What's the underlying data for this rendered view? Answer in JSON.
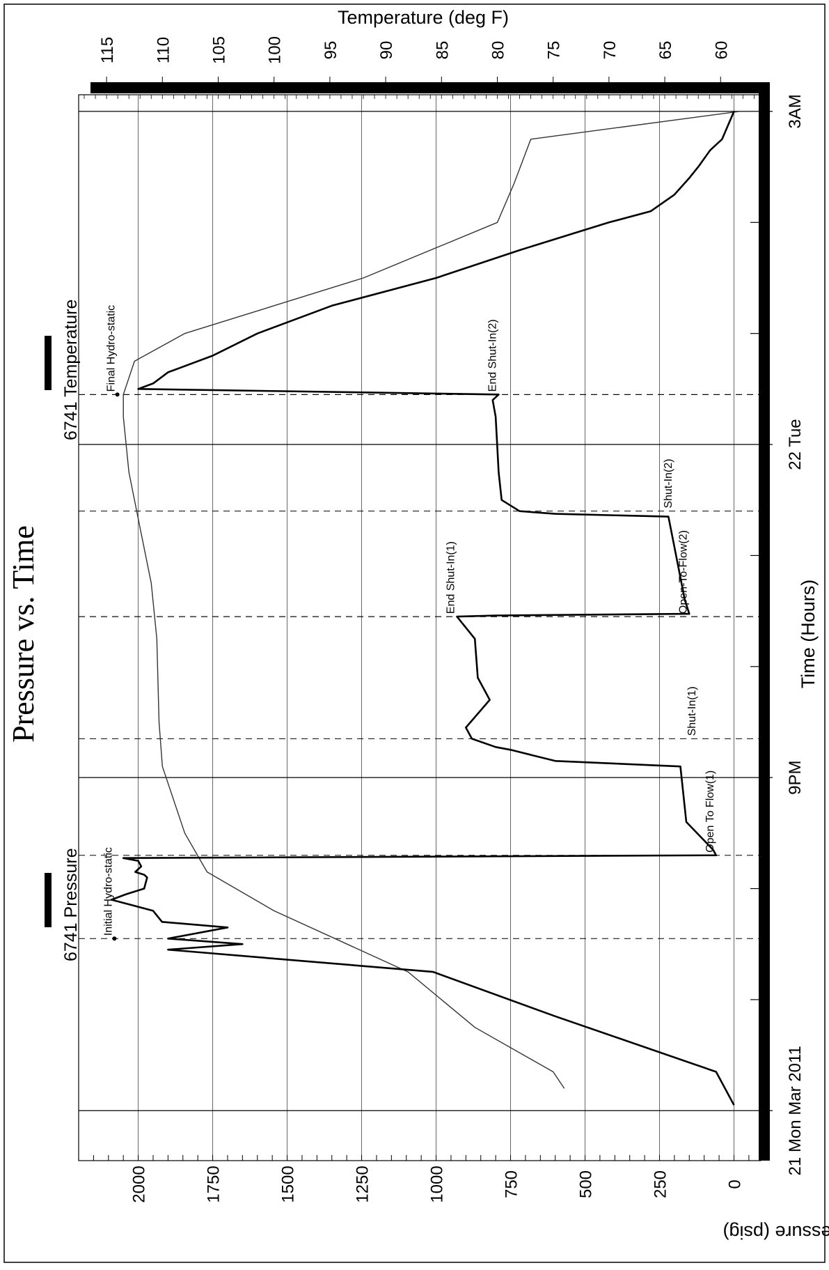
{
  "chart_data": {
    "type": "line",
    "orientation": "rotated-90-ccw",
    "title": "Pressure vs. Time",
    "xlabel": "Time (Hours)",
    "ylabel_left": "Pressure (psig)",
    "ylabel_right": "Temperature (deg F)",
    "x_tick_labels": [
      "21 Mon Mar 2011",
      "9PM",
      "22 Tue",
      "3AM"
    ],
    "x_tick_hours": [
      0,
      6,
      12,
      18
    ],
    "xlim_hours": [
      -0.9,
      18.3
    ],
    "pressure_ticks": [
      0,
      250,
      500,
      750,
      1000,
      1250,
      1500,
      1750,
      2000
    ],
    "pressure_ylim": [
      -90,
      2200
    ],
    "temperature_ticks": [
      60,
      65,
      70,
      75,
      80,
      85,
      90,
      95,
      100,
      105,
      110,
      115
    ],
    "temperature_ylim": [
      56.4,
      117.5
    ],
    "grid": true,
    "legend": [
      {
        "name": "6741 Pressure",
        "style": "thick"
      },
      {
        "name": "6741 Temperature",
        "style": "thin"
      }
    ],
    "event_markers": [
      {
        "label": "Initial Hydro-static",
        "hour": 3.1,
        "pressure": 2080
      },
      {
        "label": "Open To Flow(1)",
        "hour": 4.6,
        "pressure": 60
      },
      {
        "label": "Shut-In(1)",
        "hour": 6.7,
        "pressure": 120
      },
      {
        "label": "End Shut-In(1)",
        "hour": 8.9,
        "pressure": 930
      },
      {
        "label": "Open-To-Flow(2)",
        "hour": 8.9,
        "pressure": 150
      },
      {
        "label": "Shut-In(2)",
        "hour": 10.8,
        "pressure": 200
      },
      {
        "label": "End Shut-In(2)",
        "hour": 12.9,
        "pressure": 790
      },
      {
        "label": "Final Hydro-static",
        "hour": 12.9,
        "pressure": 2070
      }
    ],
    "series": [
      {
        "name": "6741 Pressure",
        "x": [
          0.1,
          0.7,
          1.7,
          2.5,
          2.9,
          3.0,
          3.1,
          3.3,
          3.4,
          3.6,
          3.7,
          3.8,
          3.9,
          4.0,
          4.2,
          4.25,
          4.3,
          4.4,
          4.5,
          4.55,
          4.6,
          4.7,
          5.2,
          6.2,
          6.3,
          6.5,
          6.55,
          6.7,
          6.9,
          7.4,
          7.8,
          8.5,
          8.9,
          8.92,
          8.95,
          9.2,
          10.7,
          10.75,
          10.8,
          11.0,
          11.5,
          12.5,
          12.8,
          12.9,
          13.0,
          13.1,
          13.3,
          13.6,
          14.0,
          14.5,
          15.0,
          15.5,
          16.0,
          16.2,
          16.5,
          16.8,
          17.0,
          17.3,
          17.5,
          18.0
        ],
        "y": [
          0,
          60,
          600,
          1010,
          1900,
          1650,
          1900,
          1700,
          1920,
          1950,
          2020,
          2090,
          2040,
          1980,
          1970,
          1980,
          2010,
          1990,
          2000,
          2050,
          60,
          70,
          160,
          180,
          600,
          750,
          800,
          880,
          900,
          820,
          860,
          870,
          930,
          800,
          150,
          165,
          220,
          600,
          720,
          780,
          790,
          800,
          810,
          790,
          2000,
          1950,
          1900,
          1750,
          1600,
          1350,
          1000,
          720,
          420,
          280,
          200,
          150,
          120,
          80,
          40,
          0
        ]
      },
      {
        "name": "6741 Temperature",
        "x": [
          0.4,
          0.7,
          1.5,
          2.5,
          3.6,
          4.3,
          5.0,
          6.2,
          7.0,
          8.5,
          9.5,
          10.5,
          11.5,
          12.5,
          12.9,
          13.5,
          14.0,
          15.0,
          16.0,
          16.7,
          17.5,
          18.0
        ],
        "y": [
          74.0,
          75.0,
          82.0,
          88.0,
          100.0,
          106.0,
          108.0,
          110.0,
          110.3,
          110.5,
          111.0,
          112.0,
          113.0,
          113.5,
          113.5,
          112.5,
          108.0,
          92.0,
          80.0,
          78.5,
          77.0,
          58.3
        ]
      }
    ]
  }
}
